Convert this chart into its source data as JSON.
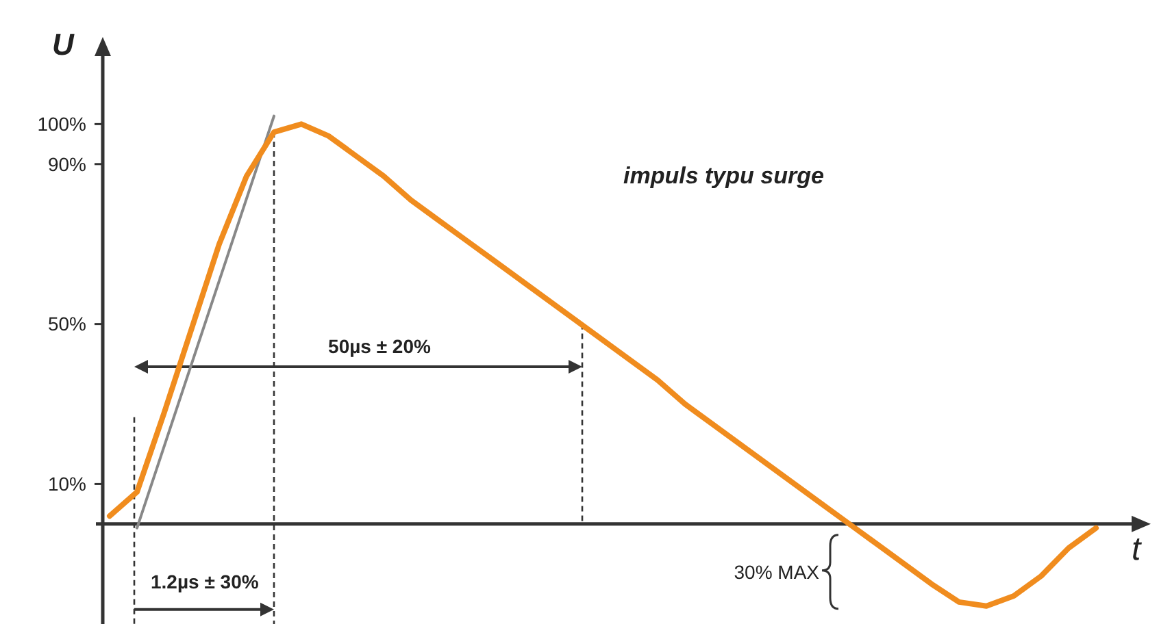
{
  "chart_data": {
    "type": "line",
    "xlabel": "t",
    "ylabel": "U",
    "categories": [
      null,
      null,
      null,
      null,
      null,
      null,
      null,
      null,
      null,
      null,
      null,
      null,
      null,
      null,
      null,
      null,
      null,
      null,
      null,
      null,
      null,
      null,
      null,
      null,
      null,
      null,
      null,
      null,
      null,
      null,
      null,
      null,
      null,
      null,
      null,
      null,
      null
    ],
    "series": [
      {
        "color": "#888888",
        "values": [
          null,
          -1,
          null,
          null,
          null,
          null,
          102,
          null,
          null,
          null,
          null,
          null,
          null,
          null,
          null,
          null,
          null,
          null,
          null,
          null,
          null,
          null,
          null,
          null,
          null,
          null,
          null,
          null,
          null,
          null,
          null,
          null,
          null,
          null,
          null,
          null,
          null
        ]
      },
      {
        "color": "#f08c1e",
        "values": [
          2,
          8,
          28,
          49,
          70,
          87,
          98,
          100,
          97,
          92,
          87,
          81,
          76,
          71,
          66,
          61,
          56,
          51,
          46,
          41,
          36,
          30,
          25,
          20,
          15,
          10,
          5,
          0,
          -5,
          -10,
          -15,
          -19.5,
          -20.5,
          -18,
          -13,
          -6,
          -1
        ]
      }
    ],
    "ylim": [
      -25,
      117
    ],
    "yticks": [
      {
        "value": 10,
        "label": "10%"
      },
      {
        "value": 50,
        "label": "50%"
      },
      {
        "value": 90,
        "label": "90%"
      },
      {
        "value": 100,
        "label": "100%"
      }
    ],
    "annotations": [
      "impuls typu surge",
      "50µs ± 20%",
      "1.2µs ± 30%",
      "30% MAX"
    ],
    "grid": false,
    "marker": "none",
    "line_style": "solid"
  }
}
